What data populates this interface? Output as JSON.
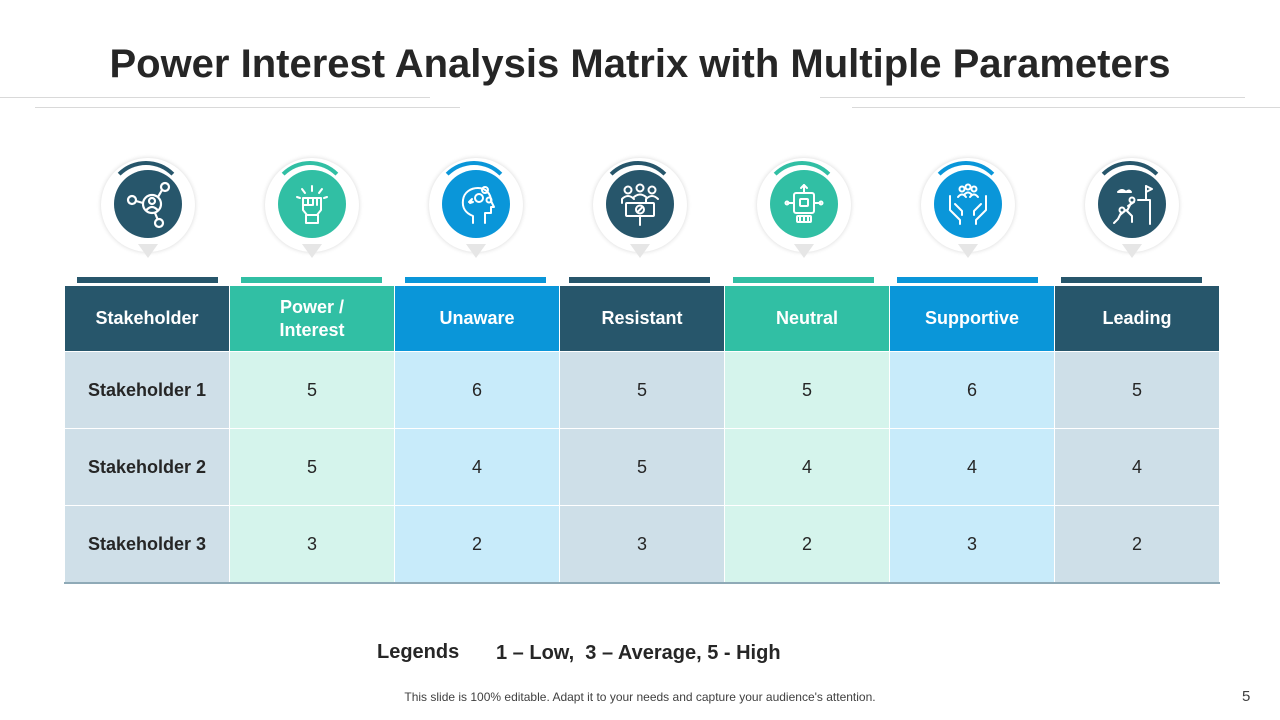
{
  "slide": {
    "title": "Power Interest Analysis Matrix with Multiple Parameters",
    "footer": "This slide is 100% editable. Adapt it to your needs and capture your audience's attention.",
    "page_number": "5"
  },
  "colors": {
    "dark": "#27566b",
    "teal": "#31bfa4",
    "blue": "#0a96d9",
    "dark_col": "#cedfe8",
    "teal_col": "#d5f4ec",
    "blue_col": "#c8ebfa",
    "label_col": "#cfdfe8"
  },
  "columns": [
    {
      "icon": "network-user-icon"
    },
    {
      "icon": "raised-fist-icon"
    },
    {
      "icon": "head-gears-icon"
    },
    {
      "icon": "protest-sign-icon"
    },
    {
      "icon": "robot-icon"
    },
    {
      "icon": "hands-people-icon"
    },
    {
      "icon": "climbing-flag-icon"
    }
  ],
  "table": {
    "headers": [
      "Stakeholder",
      "Power /\nInterest",
      "Unaware",
      "Resistant",
      "Neutral",
      "Supportive",
      "Leading"
    ],
    "rows": [
      {
        "label": "Stakeholder 1",
        "values": [
          "5",
          "6",
          "5",
          "5",
          "6",
          "5"
        ]
      },
      {
        "label": "Stakeholder 2",
        "values": [
          "5",
          "4",
          "5",
          "4",
          "4",
          "4"
        ]
      },
      {
        "label": "Stakeholder 3",
        "values": [
          "3",
          "2",
          "3",
          "2",
          "3",
          "2"
        ]
      }
    ]
  },
  "legend": {
    "label": "Legends",
    "text": "1 – Low,  3 – Average, 5 - High"
  }
}
